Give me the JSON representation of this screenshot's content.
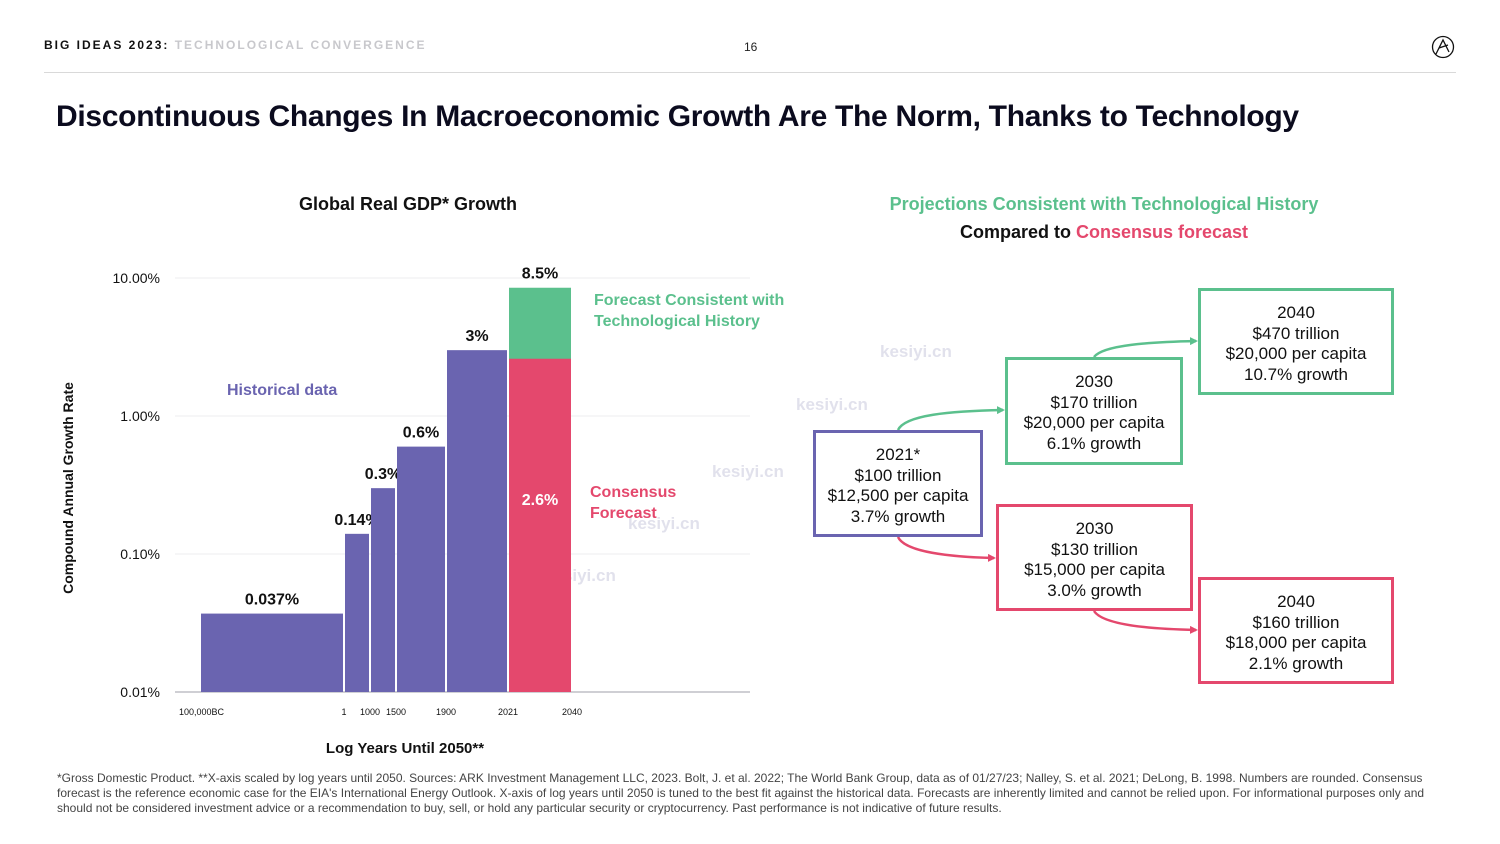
{
  "header": {
    "brand": "BIG IDEAS 2023",
    "separator": ": ",
    "section": "TECHNOLOGICAL CONVERGENCE",
    "page_number": "16",
    "logo_icon": "ark-logo-icon"
  },
  "title": "Discontinuous Changes In Macroeconomic Growth Are The Norm, Thanks to Technology",
  "chart_data": {
    "type": "bar",
    "title": "Global Real GDP* Growth",
    "xlabel": "Log Years Until 2050**",
    "ylabel": "Compound Annual Growth Rate",
    "y_scale": "log",
    "ylim": [
      0.01,
      10
    ],
    "y_ticks": [
      "10.00%",
      "1.00%",
      "0.10%",
      "0.01%"
    ],
    "x_tick_labels": [
      "100,000BC",
      "1",
      "1000",
      "1500",
      "1900",
      "2021",
      "2040"
    ],
    "grid": true,
    "series": [
      {
        "name": "Historical data",
        "color": "#6a64b0",
        "bars": [
          {
            "from": "100,000BC",
            "to": "1",
            "value": 0.037,
            "label": "0.037%"
          },
          {
            "from": "1",
            "to": "1000",
            "value": 0.14,
            "label": "0.14%"
          },
          {
            "from": "1000",
            "to": "1500",
            "value": 0.3,
            "label": "0.3%"
          },
          {
            "from": "1500",
            "to": "1900",
            "value": 0.6,
            "label": "0.6%"
          },
          {
            "from": "1900",
            "to": "2021",
            "value": 3,
            "label": "3%"
          }
        ]
      },
      {
        "name": "Consensus Forecast",
        "color": "#e4486d",
        "bars": [
          {
            "from": "2021",
            "to": "2040",
            "value": 2.6,
            "label": "2.6%"
          }
        ]
      },
      {
        "name": "Forecast Consistent with Technological History",
        "color": "#5bc08d",
        "bars": [
          {
            "from": "2021",
            "to": "2040",
            "value": 8.5,
            "label": "8.5%"
          }
        ]
      }
    ]
  },
  "annotations": {
    "historical": "Historical data",
    "tech_line1": "Forecast Consistent with",
    "tech_line2": "Technological History",
    "consensus_line1": "Consensus",
    "consensus_line2": "Forecast"
  },
  "projections": {
    "title": "Projections Consistent with Technological History",
    "subtitle_prefix": "Compared to ",
    "subtitle_highlight": "Consensus forecast",
    "base": {
      "year": "2021*",
      "gdp": "$100 trillion",
      "per_capita": "$12,500 per capita",
      "growth": "3.7% growth"
    },
    "tech_2030": {
      "year": "2030",
      "gdp": "$170 trillion",
      "per_capita": "$20,000 per capita",
      "growth": "6.1% growth"
    },
    "tech_2040": {
      "year": "2040",
      "gdp": "$470 trillion",
      "per_capita": "$20,000 per capita",
      "growth": "10.7% growth"
    },
    "consensus_2030": {
      "year": "2030",
      "gdp": "$130 trillion",
      "per_capita": "$15,000 per capita",
      "growth": "3.0% growth"
    },
    "consensus_2040": {
      "year": "2040",
      "gdp": "$160 trillion",
      "per_capita": "$18,000 per capita",
      "growth": "2.1% growth"
    }
  },
  "watermark": "kesiyi.cn",
  "footnote": "*Gross Domestic Product. **X-axis scaled by log years until 2050. Sources: ARK Investment Management LLC, 2023. Bolt, J. et al. 2022; The World Bank Group, data as of 01/27/23; Nalley, S. et al. 2021; DeLong, B. 1998. Numbers are rounded. Consensus forecast is the reference economic case for the EIA's International Energy Outlook. X-axis of log years until 2050 is tuned to the best fit against the historical data. Forecasts are inherently limited and cannot be relied upon. For informational purposes only and should not be considered investment advice or a recommendation to buy, sell, or hold any particular security or cryptocurrency. Past performance is not indicative of future results."
}
